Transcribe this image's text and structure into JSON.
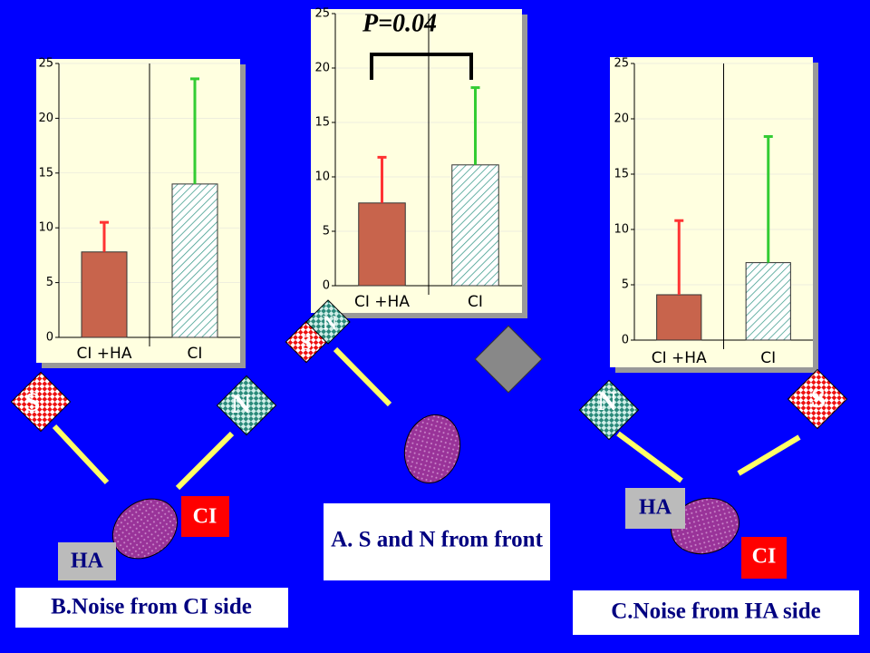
{
  "chart_data": [
    {
      "type": "bar",
      "categories": [
        "CI +HA",
        "CI"
      ],
      "values": [
        7.8,
        14
      ],
      "errors": [
        2.7,
        9.6
      ],
      "colors": [
        "#c8644c",
        "#ffffff"
      ],
      "error_colors": [
        "#ff3333",
        "#33cc33"
      ],
      "ylim": [
        0,
        25
      ],
      "yticks": [
        0,
        5,
        10,
        15,
        20,
        25
      ],
      "grid": true
    },
    {
      "type": "bar",
      "categories": [
        "CI +HA",
        "CI"
      ],
      "values": [
        7.6,
        11.1
      ],
      "errors": [
        4.2,
        7.1
      ],
      "colors": [
        "#c8644c",
        "#ffffff"
      ],
      "error_colors": [
        "#ff3333",
        "#33cc33"
      ],
      "ylim": [
        0,
        25
      ],
      "yticks": [
        0,
        5,
        10,
        15,
        20,
        25
      ],
      "grid": true,
      "annotation": "P=0.04"
    },
    {
      "type": "bar",
      "categories": [
        "CI +HA",
        "CI"
      ],
      "values": [
        4.1,
        7.0
      ],
      "errors": [
        6.7,
        11.4
      ],
      "colors": [
        "#c8644c",
        "#ffffff"
      ],
      "error_colors": [
        "#ff3333",
        "#33cc33"
      ],
      "ylim": [
        0,
        25
      ],
      "yticks": [
        0,
        5,
        10,
        15,
        20,
        25
      ],
      "grid": true
    }
  ],
  "scenes": [
    {
      "caption": "B.Noise from CI side",
      "speakers": [
        "S",
        "N"
      ],
      "devices": [
        "CI",
        "HA"
      ]
    },
    {
      "caption": "A. S and N from front",
      "speakers": [
        "S",
        "N"
      ]
    },
    {
      "caption": "C.Noise from HA side",
      "speakers": [
        "N",
        "S"
      ],
      "devices": [
        "HA",
        "CI"
      ]
    }
  ]
}
